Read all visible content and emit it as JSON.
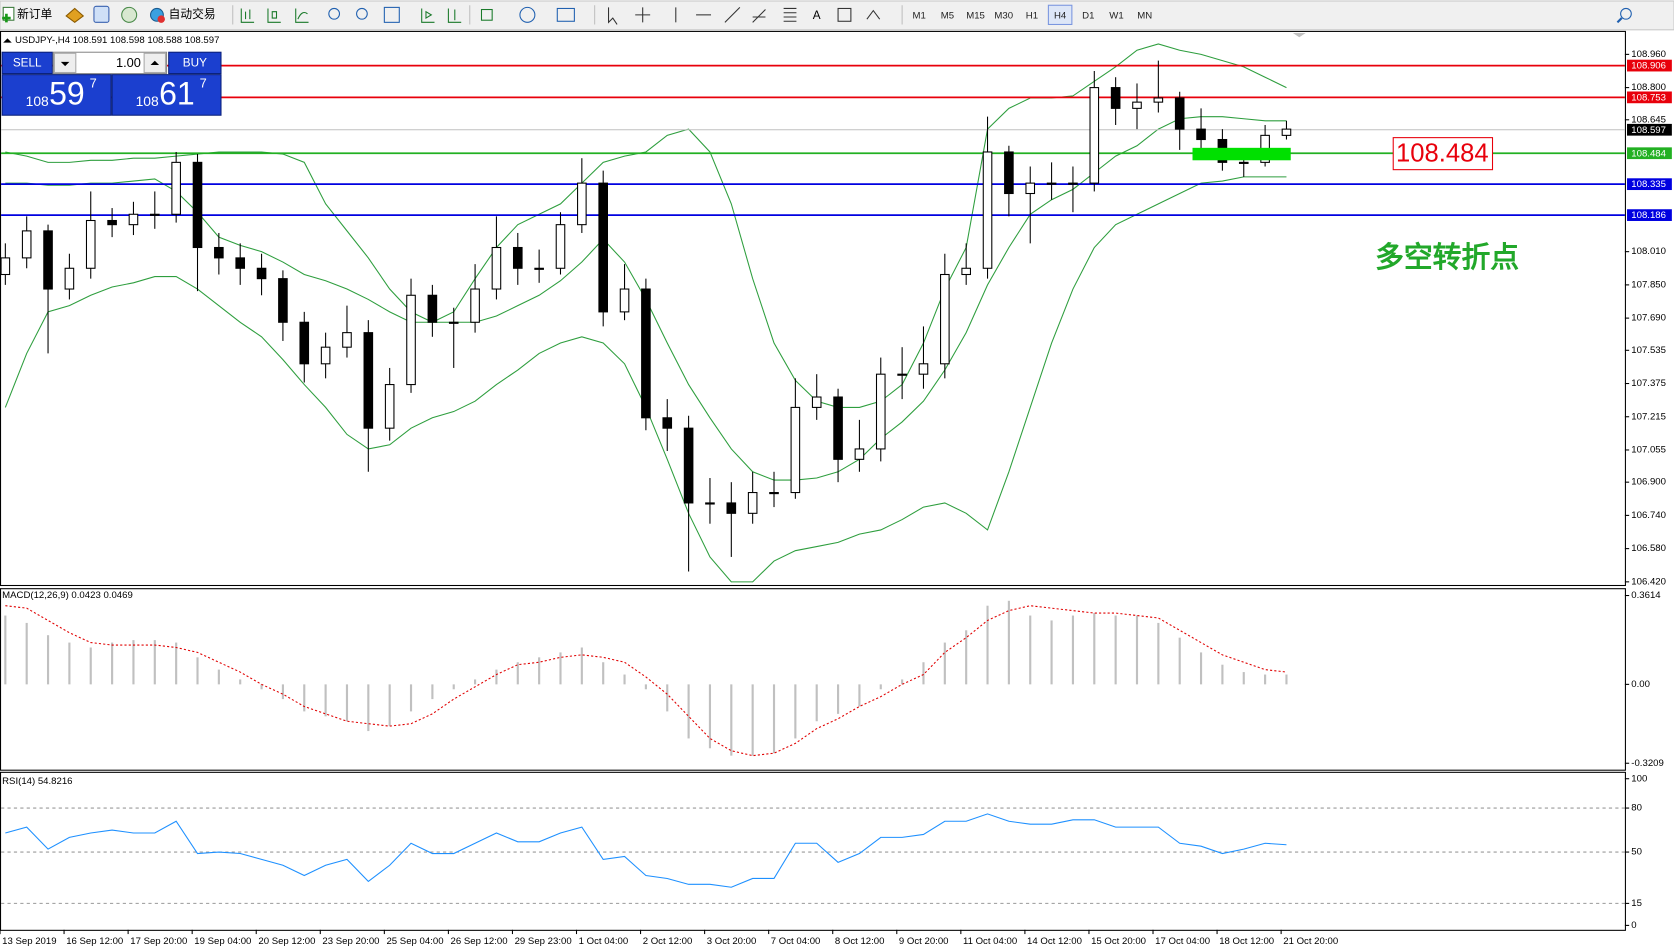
{
  "toolbar": {
    "new_order": "新订单",
    "auto_trading": "自动交易",
    "text_tool": "A",
    "timeframes": [
      "M1",
      "M5",
      "M15",
      "M30",
      "H1",
      "H4",
      "D1",
      "W1",
      "MN"
    ],
    "active_timeframe": "H4"
  },
  "trade_panel": {
    "sell": "SELL",
    "buy": "BUY",
    "lots": "1.00",
    "sell_price": {
      "prefix": "108",
      "main": "59",
      "sup": "7"
    },
    "buy_price": {
      "prefix": "108",
      "main": "61",
      "sup": "7"
    }
  },
  "chart_data": [
    {
      "type": "candlestick",
      "title": "USDJPY-,H4  108.591 108.598 108.588 108.597",
      "categories": [
        "13 Sep 2019",
        null,
        null,
        "16 Sep 12:00",
        null,
        null,
        "17 Sep 20:00",
        null,
        null,
        "19 Sep 04:00",
        null,
        null,
        "20 Sep 12:00",
        null,
        null,
        "23 Sep 20:00",
        null,
        null,
        "25 Sep 04:00",
        null,
        null,
        "26 Sep 12:00",
        null,
        null,
        "29 Sep 23:00",
        null,
        null,
        "1 Oct 04:00",
        null,
        null,
        "2 Oct 12:00",
        null,
        null,
        "3 Oct 20:00",
        null,
        null,
        "7 Oct 04:00",
        null,
        null,
        "8 Oct 12:00",
        null,
        null,
        "9 Oct 20:00",
        null,
        null,
        "11 Oct 04:00",
        null,
        null,
        "14 Oct 12:00",
        null,
        null,
        "15 Oct 20:00",
        null,
        null,
        "17 Oct 04:00",
        null,
        null,
        "18 Oct 12:00",
        null,
        null,
        "21 Oct 20:00"
      ],
      "open": [
        107.9,
        107.98,
        108.11,
        107.83,
        107.93,
        108.16,
        108.14,
        108.19,
        108.19,
        108.44,
        108.03,
        107.98,
        107.93,
        107.88,
        107.67,
        107.47,
        107.55,
        107.62,
        107.16,
        107.37,
        107.8,
        107.67,
        107.67,
        107.83,
        108.03,
        107.93,
        107.93,
        108.14,
        108.34,
        107.72,
        107.83,
        107.21,
        107.16,
        106.8,
        106.8,
        106.75,
        106.85,
        106.85,
        107.26,
        107.31,
        107.01,
        107.06,
        107.42,
        107.42,
        107.47,
        107.9,
        107.93,
        108.49,
        108.29,
        108.34,
        108.34,
        108.34,
        108.8,
        108.7,
        108.73,
        108.75,
        108.6,
        108.55,
        108.44,
        108.44,
        108.57
      ],
      "high": [
        108.05,
        108.18,
        108.14,
        108.0,
        108.3,
        108.22,
        108.25,
        108.3,
        108.49,
        108.48,
        108.1,
        108.05,
        108.0,
        107.92,
        107.72,
        107.62,
        107.75,
        107.68,
        107.45,
        107.88,
        107.85,
        107.74,
        107.95,
        108.18,
        108.1,
        108.02,
        108.2,
        108.46,
        108.4,
        107.95,
        107.88,
        107.3,
        107.22,
        106.92,
        106.9,
        106.95,
        106.95,
        107.4,
        107.42,
        107.35,
        107.2,
        107.5,
        107.55,
        107.65,
        108.0,
        108.05,
        108.66,
        108.52,
        108.42,
        108.44,
        108.42,
        108.88,
        108.85,
        108.82,
        108.93,
        108.78,
        108.7,
        108.6,
        108.5,
        108.62,
        108.64
      ],
      "low": [
        107.85,
        107.93,
        107.52,
        107.78,
        107.88,
        108.08,
        108.09,
        108.12,
        108.15,
        107.82,
        107.9,
        107.85,
        107.8,
        107.58,
        107.38,
        107.4,
        107.5,
        106.95,
        107.1,
        107.33,
        107.6,
        107.45,
        107.62,
        107.78,
        107.85,
        107.86,
        107.9,
        108.1,
        107.65,
        107.68,
        107.15,
        107.05,
        106.47,
        106.7,
        106.54,
        106.7,
        106.78,
        106.82,
        107.2,
        106.9,
        106.95,
        107.0,
        107.3,
        107.35,
        107.4,
        107.85,
        107.88,
        108.18,
        108.05,
        108.26,
        108.2,
        108.3,
        108.62,
        108.6,
        108.68,
        108.5,
        108.48,
        108.4,
        108.37,
        108.42,
        108.55
      ],
      "close": [
        107.98,
        108.11,
        107.83,
        107.93,
        108.16,
        108.14,
        108.19,
        108.19,
        108.44,
        108.03,
        107.98,
        107.93,
        107.88,
        107.67,
        107.47,
        107.55,
        107.62,
        107.16,
        107.37,
        107.8,
        107.67,
        107.67,
        107.83,
        108.03,
        107.93,
        107.93,
        108.14,
        108.34,
        107.72,
        107.83,
        107.21,
        107.16,
        106.8,
        106.8,
        106.75,
        106.85,
        106.85,
        107.26,
        107.31,
        107.01,
        107.06,
        107.42,
        107.42,
        107.47,
        107.9,
        107.93,
        108.49,
        108.29,
        108.34,
        108.34,
        108.34,
        108.8,
        108.7,
        108.73,
        108.75,
        108.6,
        108.55,
        108.44,
        108.44,
        108.57,
        108.6
      ],
      "up_color": "#ffffff",
      "down_color": "#000000",
      "bands": {
        "color": "#2e9e3e",
        "upper": [
          108.49,
          108.47,
          108.44,
          108.44,
          108.45,
          108.45,
          108.46,
          108.46,
          108.47,
          108.48,
          108.49,
          108.49,
          108.49,
          108.48,
          108.44,
          108.24,
          108.11,
          107.98,
          107.83,
          107.72,
          107.67,
          107.72,
          107.88,
          108.03,
          108.14,
          108.19,
          108.24,
          108.34,
          108.44,
          108.47,
          108.49,
          108.57,
          108.6,
          108.49,
          108.24,
          107.88,
          107.57,
          107.39,
          107.29,
          107.26,
          107.26,
          107.29,
          107.37,
          107.57,
          107.83,
          108.03,
          108.6,
          108.7,
          108.75,
          108.75,
          108.76,
          108.83,
          108.9,
          108.98,
          109.01,
          108.98,
          108.96,
          108.93,
          108.9,
          108.85,
          108.8
        ],
        "middle": [
          108.34,
          108.34,
          108.33,
          108.33,
          108.34,
          108.34,
          108.35,
          108.36,
          108.3,
          108.2,
          108.08,
          108.04,
          108.01,
          107.96,
          107.9,
          107.87,
          107.83,
          107.78,
          107.72,
          107.67,
          107.67,
          107.67,
          107.67,
          107.7,
          107.75,
          107.8,
          107.87,
          107.96,
          108.07,
          107.96,
          107.78,
          107.57,
          107.37,
          107.21,
          107.06,
          106.95,
          106.91,
          106.91,
          106.92,
          106.95,
          107.01,
          107.11,
          107.19,
          107.29,
          107.44,
          107.62,
          107.85,
          108.03,
          108.19,
          108.26,
          108.31,
          108.39,
          108.47,
          108.52,
          108.6,
          108.65,
          108.66,
          108.66,
          108.65,
          108.64,
          108.64
        ],
        "lower": [
          107.26,
          107.52,
          107.72,
          107.75,
          107.8,
          107.84,
          107.86,
          107.89,
          107.89,
          107.83,
          107.75,
          107.67,
          107.6,
          107.49,
          107.37,
          107.26,
          107.13,
          107.06,
          107.08,
          107.16,
          107.21,
          107.24,
          107.29,
          107.37,
          107.44,
          107.52,
          107.57,
          107.6,
          107.57,
          107.47,
          107.26,
          107.01,
          106.75,
          106.54,
          106.42,
          106.42,
          106.52,
          106.57,
          106.59,
          106.61,
          106.65,
          106.67,
          106.72,
          106.78,
          106.8,
          106.75,
          106.67,
          106.95,
          107.26,
          107.57,
          107.83,
          108.03,
          108.14,
          108.19,
          108.24,
          108.29,
          108.34,
          108.35,
          108.37,
          108.37,
          108.37
        ]
      },
      "ylim": [
        106.405,
        109.068
      ],
      "yticks": [
        {
          "value": 108.96,
          "label": "108.960"
        },
        {
          "value": 108.8,
          "label": "108.800"
        },
        108.645,
        {
          "value": 108.01,
          "label": "108.010"
        },
        {
          "value": 107.85,
          "label": "107.850"
        },
        {
          "value": 107.69,
          "label": "107.690"
        },
        107.535,
        107.375,
        107.215,
        107.055,
        {
          "value": 106.9,
          "label": "106.900"
        },
        {
          "value": 106.74,
          "label": "106.740"
        },
        {
          "value": 106.58,
          "label": "106.580"
        },
        {
          "value": 106.42,
          "label": "106.420"
        }
      ],
      "hlines": [
        {
          "value": 108.906,
          "color": "#e8000b"
        },
        {
          "value": 108.753,
          "color": "#e8000b"
        },
        {
          "value": 108.597,
          "color": "#c0c0c0"
        },
        {
          "value": 108.484,
          "color": "#22b022"
        },
        {
          "value": 108.335,
          "color": "#0000e0"
        },
        {
          "value": 108.186,
          "color": "#0000e0"
        }
      ],
      "zone": {
        "xlim": [
          55.6,
          60.2
        ],
        "ylim": [
          108.45,
          108.51
        ],
        "color": "#00e000"
      },
      "annotations": [
        "108.484",
        "多空转折点"
      ]
    },
    {
      "type": "macd",
      "title": "MACD(12,26,9) 0.0423 0.0469",
      "series": [
        {
          "color": "#c0c0c0",
          "values": [
            0.28,
            0.25,
            0.2,
            0.17,
            0.15,
            0.17,
            0.18,
            0.18,
            0.17,
            0.11,
            0.06,
            0.02,
            -0.02,
            -0.06,
            -0.11,
            -0.13,
            -0.15,
            -0.19,
            -0.17,
            -0.11,
            -0.06,
            -0.02,
            0.02,
            0.06,
            0.09,
            0.11,
            0.13,
            0.15,
            0.09,
            0.04,
            -0.02,
            -0.11,
            -0.22,
            -0.26,
            -0.29,
            -0.29,
            -0.28,
            -0.22,
            -0.15,
            -0.12,
            -0.09,
            -0.02,
            0.02,
            0.09,
            0.17,
            0.22,
            0.32,
            0.34,
            0.28,
            0.26,
            0.28,
            0.29,
            0.28,
            0.28,
            0.25,
            0.19,
            0.13,
            0.08,
            0.05,
            0.04,
            0.04
          ]
        },
        {
          "color": "#e00000",
          "values": [
            0.32,
            0.31,
            0.26,
            0.21,
            0.17,
            0.16,
            0.16,
            0.16,
            0.15,
            0.13,
            0.09,
            0.05,
            0.0,
            -0.04,
            -0.09,
            -0.12,
            -0.15,
            -0.16,
            -0.17,
            -0.16,
            -0.12,
            -0.06,
            -0.01,
            0.04,
            0.08,
            0.09,
            0.11,
            0.12,
            0.11,
            0.09,
            0.03,
            -0.04,
            -0.13,
            -0.22,
            -0.27,
            -0.29,
            -0.28,
            -0.24,
            -0.18,
            -0.14,
            -0.09,
            -0.05,
            0.0,
            0.04,
            0.13,
            0.19,
            0.26,
            0.3,
            0.32,
            0.31,
            0.3,
            0.29,
            0.29,
            0.28,
            0.27,
            0.22,
            0.17,
            0.12,
            0.09,
            0.06,
            0.05
          ]
        }
      ],
      "ylim": [
        -0.347,
        0.387
      ],
      "yticks": [
        0.3614,
        {
          "value": 0,
          "label": "0.00"
        },
        -0.3209
      ]
    },
    {
      "type": "line",
      "title": "RSI(14) 54.8216",
      "color": "#1e90ff",
      "values": [
        63,
        67,
        52,
        60,
        63,
        65,
        63,
        63,
        71,
        49,
        50,
        49,
        45,
        41,
        34,
        41,
        45,
        30,
        41,
        56,
        49,
        49,
        56,
        63,
        57,
        57,
        63,
        67,
        45,
        47,
        34,
        32,
        28,
        28,
        26,
        32,
        32,
        56,
        56,
        43,
        49,
        60,
        60,
        62,
        71,
        71,
        76,
        71,
        69,
        69,
        72,
        72,
        67,
        67,
        67,
        56,
        54,
        49,
        52,
        56,
        55
      ],
      "ylim": [
        -3,
        104
      ],
      "yticks": [
        100,
        80,
        50,
        15,
        0
      ],
      "levels": [
        80,
        50,
        15
      ]
    }
  ]
}
